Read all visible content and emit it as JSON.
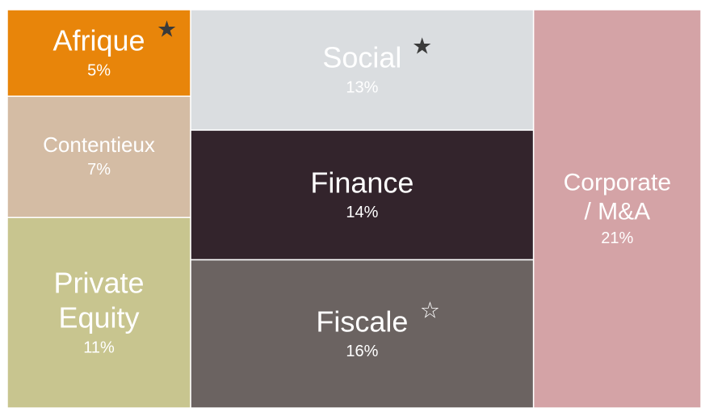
{
  "chart_data": {
    "type": "treemap",
    "categories": [
      "Afrique",
      "Contentieux",
      "Private Equity",
      "Social",
      "Finance",
      "Fiscale",
      "Corporate / M&A"
    ],
    "values": [
      5,
      7,
      11,
      13,
      14,
      16,
      21
    ],
    "value_labels": [
      "5%",
      "7%",
      "11%",
      "13%",
      "14%",
      "16%",
      "21%"
    ],
    "colors": [
      "#e8850a",
      "#d4bca4",
      "#c8c58f",
      "#dadde0",
      "#33242c",
      "#6b6361",
      "#d4a3a6"
    ]
  }
}
